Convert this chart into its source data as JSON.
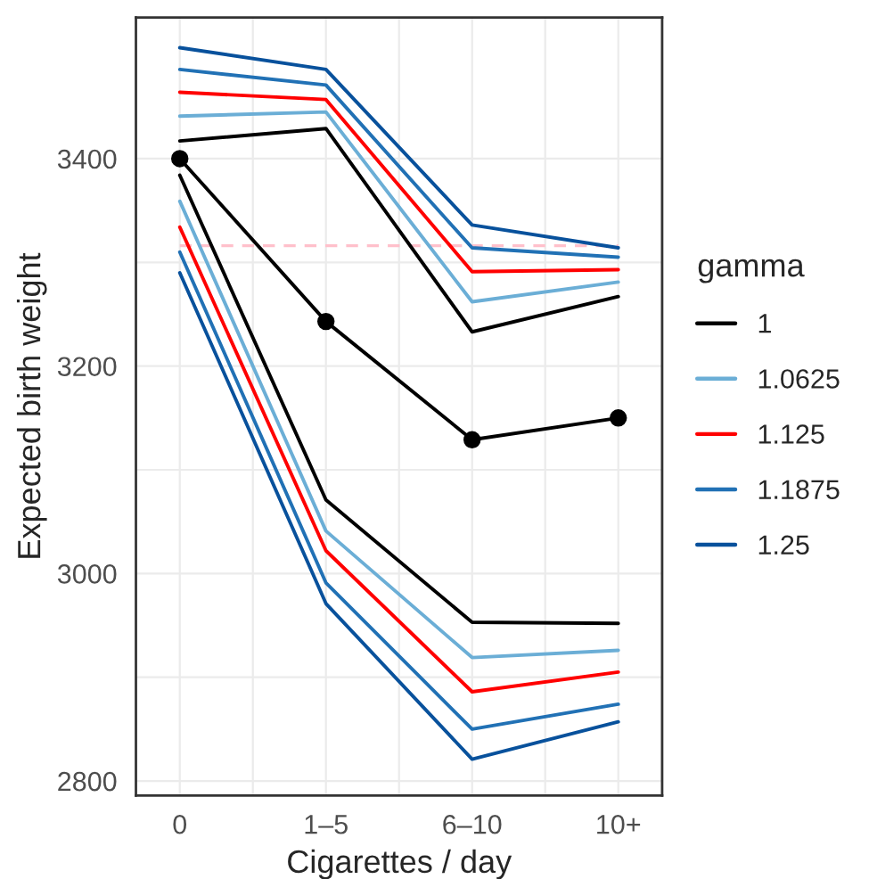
{
  "chart_data": {
    "type": "line",
    "xlabel": "Cigarettes / day",
    "ylabel": "Expected birth weight",
    "legend_title": "gamma",
    "categories": [
      "0",
      "1–5",
      "6–10",
      "10+"
    ],
    "series": [
      {
        "name": "1",
        "color": "#000000",
        "values": [
          3417,
          3429,
          3233,
          3267
        ]
      },
      {
        "name": "1.0625",
        "color": "#6baed6",
        "values": [
          3441,
          3445,
          3262,
          3281
        ]
      },
      {
        "name": "1.125",
        "color": "#ff0000",
        "values": [
          3464,
          3457,
          3291,
          3293
        ]
      },
      {
        "name": "1.1875",
        "color": "#2171b5",
        "values": [
          3486,
          3471,
          3314,
          3305
        ]
      },
      {
        "name": "1.25",
        "color": "#08519c",
        "values": [
          3507,
          3486,
          3336,
          3314
        ]
      },
      {
        "color": "#000000",
        "values": [
          3384,
          3071,
          2953,
          2952
        ]
      },
      {
        "color": "#6baed6",
        "values": [
          3359,
          3041,
          2919,
          2926
        ]
      },
      {
        "color": "#ff0000",
        "values": [
          3334,
          3022,
          2886,
          2905
        ]
      },
      {
        "color": "#2171b5",
        "values": [
          3310,
          2991,
          2850,
          2874
        ]
      },
      {
        "color": "#08519c",
        "values": [
          3290,
          2971,
          2821,
          2857
        ]
      },
      {
        "color": "#000000",
        "marker": "circle",
        "values": [
          3400,
          3243,
          3129,
          3150
        ]
      }
    ],
    "ref_lines": [
      {
        "axis": "y",
        "value": 3316,
        "color": "#ffc0cb",
        "line_style": "dashed"
      }
    ],
    "ylim": [
      2786,
      3536
    ],
    "yticks": [
      2800,
      3000,
      3200,
      3400
    ],
    "grid": true,
    "legend": "right"
  }
}
